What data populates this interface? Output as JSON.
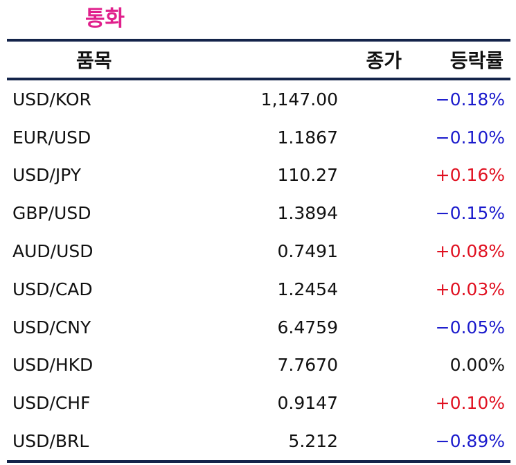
{
  "title": "통화",
  "header": {
    "name": "품목",
    "close": "종가",
    "change": "등락률"
  },
  "colors": {
    "title": "#e0208c",
    "border": "#14244a",
    "negative": "#1a1acc",
    "positive": "#e01020",
    "neutral": "#111111"
  },
  "rows": [
    {
      "name": "USD/KOR",
      "close": "1,147.00",
      "change": "−0.18%",
      "direction": "neg"
    },
    {
      "name": "EUR/USD",
      "close": "1.1867",
      "change": "−0.10%",
      "direction": "neg"
    },
    {
      "name": "USD/JPY",
      "close": "110.27",
      "change": "+0.16%",
      "direction": "pos"
    },
    {
      "name": "GBP/USD",
      "close": "1.3894",
      "change": "−0.15%",
      "direction": "neg"
    },
    {
      "name": "AUD/USD",
      "close": "0.7491",
      "change": "+0.08%",
      "direction": "pos"
    },
    {
      "name": "USD/CAD",
      "close": "1.2454",
      "change": "+0.03%",
      "direction": "pos"
    },
    {
      "name": "USD/CNY",
      "close": "6.4759",
      "change": "−0.05%",
      "direction": "neg"
    },
    {
      "name": "USD/HKD",
      "close": "7.7670",
      "change": "0.00%",
      "direction": "zero"
    },
    {
      "name": "USD/CHF",
      "close": "0.9147",
      "change": "+0.10%",
      "direction": "pos"
    },
    {
      "name": "USD/BRL",
      "close": "5.212",
      "change": "−0.89%",
      "direction": "neg"
    }
  ]
}
